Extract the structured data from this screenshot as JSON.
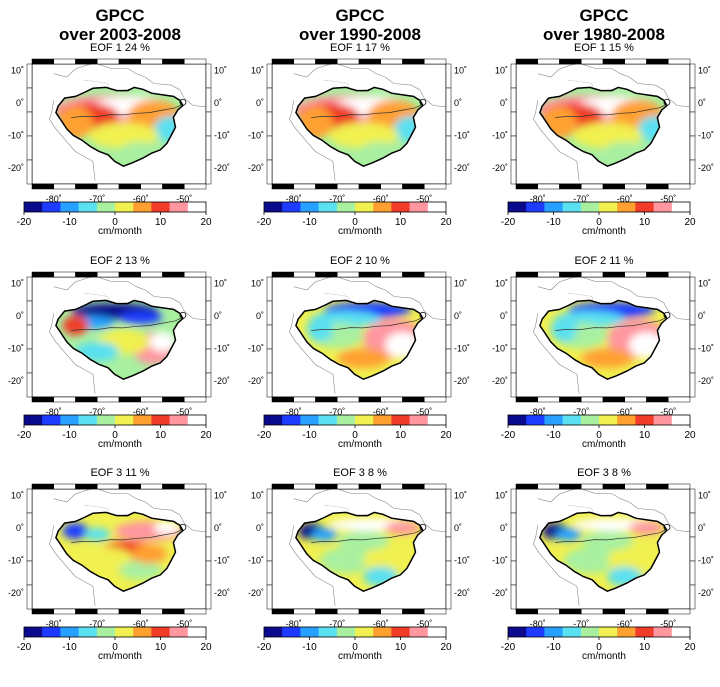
{
  "columns": [
    {
      "title_line1": "GPCC",
      "title_line2": "over 2003-2008",
      "panels": [
        {
          "label": "EOF 1   24 %",
          "pattern": "eof1"
        },
        {
          "label": "EOF 2   13 %",
          "pattern": "eof2a"
        },
        {
          "label": "EOF 3   11 %",
          "pattern": "eof3a"
        }
      ]
    },
    {
      "title_line1": "GPCC",
      "title_line2": "over 1990-2008",
      "panels": [
        {
          "label": "EOF 1   17 %",
          "pattern": "eof1"
        },
        {
          "label": "EOF 2   10 %",
          "pattern": "eof2b"
        },
        {
          "label": "EOF 3   8 %",
          "pattern": "eof3b"
        }
      ]
    },
    {
      "title_line1": "GPCC",
      "title_line2": "over 1980-2008",
      "panels": [
        {
          "label": "EOF 1   15 %",
          "pattern": "eof1"
        },
        {
          "label": "EOF 2   11 %",
          "pattern": "eof2b"
        },
        {
          "label": "EOF 3   8 %",
          "pattern": "eof3b"
        }
      ]
    }
  ],
  "colorbar": {
    "unit": "cm/month",
    "ticks": [
      -20,
      -10,
      0,
      10,
      20
    ],
    "range": [
      -20,
      20
    ],
    "colors": [
      "#0a0a8c",
      "#1e3cff",
      "#28a0ff",
      "#5ae0f0",
      "#a8f0a0",
      "#f0f050",
      "#ffa030",
      "#f03c28",
      "#ff96a0",
      "#ffffff"
    ]
  },
  "chart_data": {
    "type": "heatmap",
    "map_lon_ticks": [
      "-80˚",
      "-70˚",
      "-60˚",
      "-50˚"
    ],
    "map_lat_ticks": [
      "10˚",
      "0˚",
      "-10˚",
      "-20˚"
    ],
    "lon_range": [
      -85,
      -45
    ],
    "lat_range": [
      -25,
      12
    ],
    "panels": [
      {
        "period": "2003-2008",
        "eof": 1,
        "variance_pct": 24
      },
      {
        "period": "2003-2008",
        "eof": 2,
        "variance_pct": 13
      },
      {
        "period": "2003-2008",
        "eof": 3,
        "variance_pct": 11
      },
      {
        "period": "1990-2008",
        "eof": 1,
        "variance_pct": 17
      },
      {
        "period": "1990-2008",
        "eof": 2,
        "variance_pct": 10
      },
      {
        "period": "1990-2008",
        "eof": 3,
        "variance_pct": 8
      },
      {
        "period": "1980-2008",
        "eof": 1,
        "variance_pct": 15
      },
      {
        "period": "1980-2008",
        "eof": 2,
        "variance_pct": 11
      },
      {
        "period": "1980-2008",
        "eof": 3,
        "variance_pct": 8
      }
    ]
  }
}
